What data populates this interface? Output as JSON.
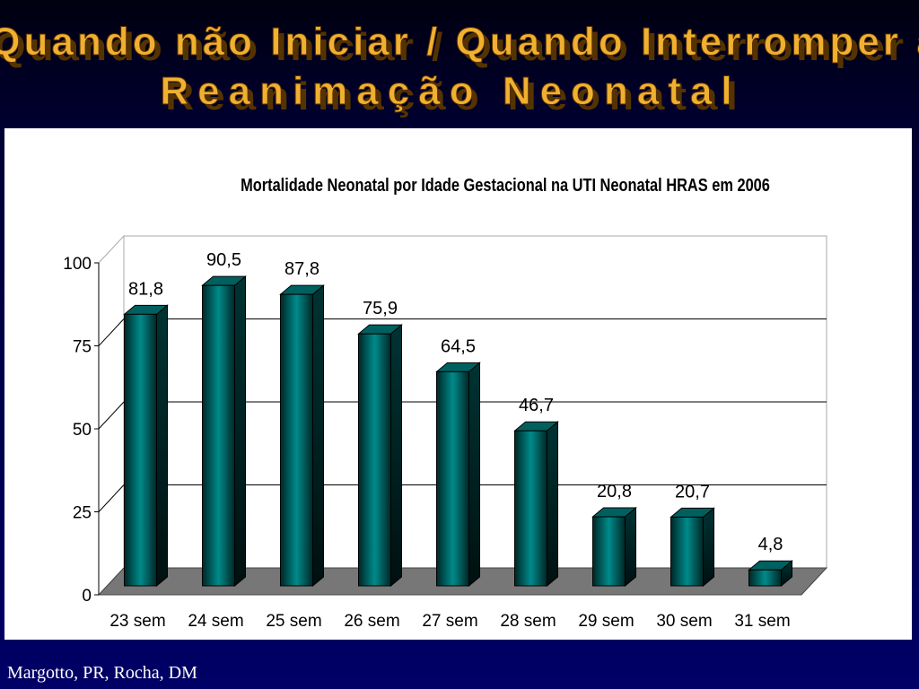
{
  "header": {
    "title_line1": "Quando não Iniciar / Quando Interromper a",
    "title_line2": "Reanimação Neonatal"
  },
  "chart_data": {
    "type": "bar3d",
    "title": "Mortalidade Neonatal por Idade Gestacional na UTI Neonatal HRAS em 2006",
    "categories": [
      "23 sem",
      "24 sem",
      "25 sem",
      "26 sem",
      "27 sem",
      "28 sem",
      "29 sem",
      "30 sem",
      "31 sem"
    ],
    "values": [
      81.8,
      90.5,
      87.8,
      75.9,
      64.5,
      46.7,
      20.8,
      20.7,
      4.8
    ],
    "value_labels": [
      "81,8",
      "90,5",
      "87,8",
      "75,9",
      "64,5",
      "46,7",
      "20,8",
      "20,7",
      "4,8"
    ],
    "color": "#008080",
    "ylim": [
      0,
      100
    ],
    "yticks": [
      0,
      25,
      50,
      75,
      100
    ],
    "grid": true
  },
  "footer": {
    "credit": "Margotto, PR, Rocha, DM"
  }
}
